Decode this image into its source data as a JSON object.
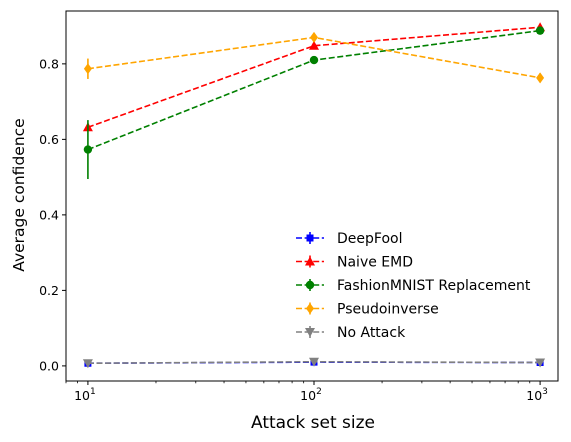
{
  "chart_data": {
    "type": "line",
    "xscale": "log",
    "xlabel": "Attack set size",
    "ylabel": "Average confidence",
    "xlim": [
      8,
      1200
    ],
    "ylim": [
      -0.04,
      0.94
    ],
    "xticks": [
      {
        "value": 10,
        "base": "10",
        "exp": "1"
      },
      {
        "value": 100,
        "base": "10",
        "exp": "2"
      },
      {
        "value": 1000,
        "base": "10",
        "exp": "3"
      }
    ],
    "yticks": [
      {
        "value": 0.0,
        "label": "0.0"
      },
      {
        "value": 0.2,
        "label": "0.2"
      },
      {
        "value": 0.4,
        "label": "0.4"
      },
      {
        "value": 0.6,
        "label": "0.6"
      },
      {
        "value": 0.8,
        "label": "0.8"
      }
    ],
    "grid": false,
    "legend_position": "lower-right",
    "x": [
      10,
      100,
      1000
    ],
    "series": [
      {
        "name": "DeepFool",
        "color": "#0000ff",
        "marker": "square",
        "values": [
          0.007,
          0.01,
          0.009
        ],
        "errors": [
          0.003,
          0.003,
          0.003
        ]
      },
      {
        "name": "Naive EMD",
        "color": "#ff0000",
        "marker": "triangle-up",
        "values": [
          0.632,
          0.848,
          0.897
        ],
        "errors": [
          0.01,
          0.01,
          0.008
        ]
      },
      {
        "name": "FashionMNIST Replacement",
        "color": "#008000",
        "marker": "circle",
        "values": [
          0.573,
          0.81,
          0.888
        ],
        "errors": [
          0.078,
          0.01,
          0.01
        ]
      },
      {
        "name": "Pseudoinverse",
        "color": "#ffa500",
        "marker": "diamond",
        "values": [
          0.787,
          0.87,
          0.763
        ],
        "errors": [
          0.027,
          0.012,
          0.012
        ]
      },
      {
        "name": "No Attack",
        "color": "#808080",
        "marker": "triangle-down",
        "values": [
          0.007,
          0.011,
          0.009
        ],
        "errors": [
          0.003,
          0.003,
          0.003
        ]
      }
    ]
  }
}
